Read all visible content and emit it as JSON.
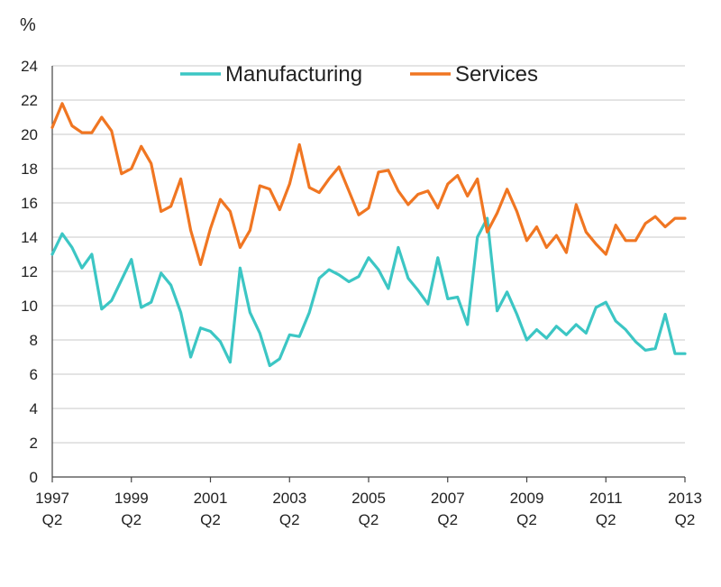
{
  "chart_data": {
    "type": "line",
    "title": "",
    "ylabel": "%",
    "xlabel": "",
    "ylim": [
      0,
      24
    ],
    "yticks": [
      "0",
      "2",
      "4",
      "6",
      "8",
      "10",
      "12",
      "14",
      "16",
      "18",
      "20",
      "22",
      "24"
    ],
    "xlim": [
      0,
      64
    ],
    "xtick_labels": [
      {
        "year": "1997",
        "quarter": "Q2",
        "index": 0
      },
      {
        "year": "1999",
        "quarter": "Q2",
        "index": 8
      },
      {
        "year": "2001",
        "quarter": "Q2",
        "index": 16
      },
      {
        "year": "2003",
        "quarter": "Q2",
        "index": 24
      },
      {
        "year": "2005",
        "quarter": "Q2",
        "index": 32
      },
      {
        "year": "2007",
        "quarter": "Q2",
        "index": 40
      },
      {
        "year": "2009",
        "quarter": "Q2",
        "index": 48
      },
      {
        "year": "2011",
        "quarter": "Q2",
        "index": 56
      },
      {
        "year": "2013",
        "quarter": "Q2",
        "index": 64
      }
    ],
    "grid": true,
    "legend_position": "top",
    "series": [
      {
        "name": "Manufacturing",
        "color": "#3cc6c4",
        "values": [
          13.0,
          14.2,
          13.4,
          12.2,
          13.0,
          9.8,
          10.3,
          11.5,
          12.7,
          9.9,
          10.2,
          11.9,
          11.2,
          9.6,
          7.0,
          8.7,
          8.5,
          7.9,
          6.7,
          12.2,
          9.6,
          8.4,
          6.5,
          6.9,
          8.3,
          8.2,
          9.6,
          11.6,
          12.1,
          11.8,
          11.4,
          11.7,
          12.8,
          12.1,
          11.0,
          13.4,
          11.6,
          10.9,
          10.1,
          12.8,
          10.4,
          10.5,
          8.9,
          14.0,
          15.1,
          9.7,
          10.8,
          9.5,
          8.0,
          8.6,
          8.1,
          8.8,
          8.3,
          8.9,
          8.4,
          9.9,
          10.2,
          9.1,
          8.6,
          7.9,
          7.4,
          7.5,
          9.5,
          7.2,
          7.2
        ]
      },
      {
        "name": "Services",
        "color": "#f07622",
        "values": [
          20.4,
          21.8,
          20.5,
          20.1,
          20.1,
          21.0,
          20.2,
          17.7,
          18.0,
          19.3,
          18.3,
          15.5,
          15.8,
          17.4,
          14.4,
          12.4,
          14.5,
          16.2,
          15.5,
          13.4,
          14.4,
          17.0,
          16.8,
          15.6,
          17.1,
          19.4,
          16.9,
          16.6,
          17.4,
          18.1,
          16.7,
          15.3,
          15.7,
          17.8,
          17.9,
          16.7,
          15.9,
          16.5,
          16.7,
          15.7,
          17.1,
          17.6,
          16.4,
          17.4,
          14.3,
          15.4,
          16.8,
          15.5,
          13.8,
          14.6,
          13.4,
          14.1,
          13.1,
          15.9,
          14.3,
          13.6,
          13.0,
          14.7,
          13.8,
          13.8,
          14.8,
          15.2,
          14.6,
          15.1,
          15.1
        ]
      }
    ]
  }
}
